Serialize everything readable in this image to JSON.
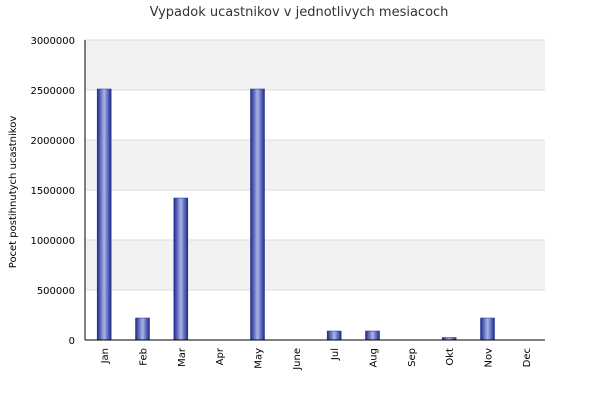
{
  "chart_data": {
    "type": "bar",
    "title": "Vypadok ucastnikov v jednotlivych mesiacoch",
    "xlabel": "",
    "ylabel": "Pocet postihnutych ucastnikov",
    "categories": [
      "Jan",
      "Feb",
      "Mar",
      "Apr",
      "May",
      "June",
      "Jul",
      "Aug",
      "Sep",
      "Okt",
      "Nov",
      "Dec"
    ],
    "values": [
      2510000,
      220000,
      1420000,
      0,
      2510000,
      0,
      90000,
      90000,
      0,
      25000,
      220000,
      0
    ],
    "ylim": [
      0,
      3000000
    ],
    "yticks": [
      0,
      500000,
      1000000,
      1500000,
      2000000,
      2500000,
      3000000
    ],
    "ytick_labels": [
      "0",
      "500000",
      "1000000",
      "1500000",
      "2000000",
      "2500000",
      "3000000"
    ],
    "grid": true,
    "legend": "none",
    "colors": {
      "bar_dark": "#1a2a8c",
      "bar_light": "#aab4e8",
      "band_alt": "#f2f2f2",
      "band_base": "#ffffff",
      "grid": "#dddddd",
      "axis": "#000000"
    }
  }
}
